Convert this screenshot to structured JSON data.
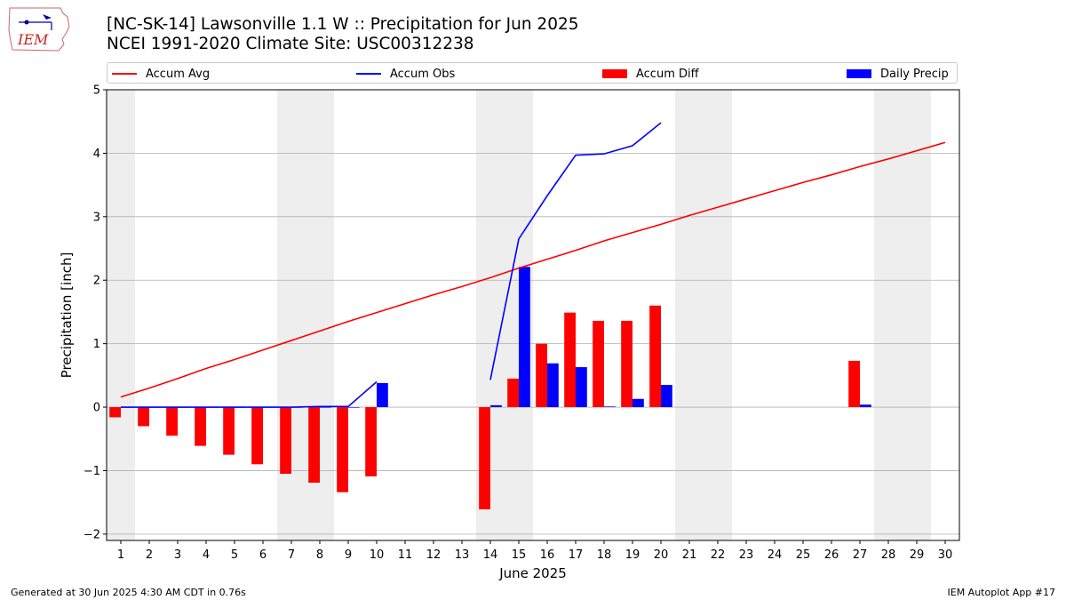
{
  "logo": {
    "text": "IEM"
  },
  "title": {
    "line1": "[NC-SK-14] Lawsonville 1.1 W :: Precipitation for Jun 2025",
    "line2": "NCEI 1991-2020 Climate Site: USC00312238"
  },
  "legend": [
    {
      "label": "Accum Avg",
      "kind": "line",
      "color": "#ff0000"
    },
    {
      "label": "Accum Obs",
      "kind": "line",
      "color": "#0000ff"
    },
    {
      "label": "Accum Diff",
      "kind": "bar",
      "color": "#ff0000"
    },
    {
      "label": "Daily Precip",
      "kind": "bar",
      "color": "#0000ff"
    }
  ],
  "footer": {
    "left": "Generated at 30 Jun 2025 4:30 AM CDT in 0.76s",
    "right": "IEM Autoplot App #17"
  },
  "chart_data": {
    "type": "bar",
    "xlabel": "June 2025",
    "ylabel": "Precipitation [inch]",
    "xlim": [
      0.5,
      30.5
    ],
    "ylim": [
      -2.1,
      5.0
    ],
    "yticks": [
      -2,
      -1,
      0,
      1,
      2,
      3,
      4,
      5
    ],
    "xticks": [
      1,
      2,
      3,
      4,
      5,
      6,
      7,
      8,
      9,
      10,
      11,
      12,
      13,
      14,
      15,
      16,
      17,
      18,
      19,
      20,
      21,
      22,
      23,
      24,
      25,
      26,
      27,
      28,
      29,
      30
    ],
    "grid": "y",
    "legend_position": "top",
    "weekend_shading": [
      [
        0.5,
        1.5
      ],
      [
        6.5,
        8.5
      ],
      [
        13.5,
        15.5
      ],
      [
        20.5,
        22.5
      ],
      [
        27.5,
        29.5
      ]
    ],
    "weekend_color": "#eeeeee",
    "series": [
      {
        "name": "Accum Avg",
        "kind": "line",
        "color": "#ff0000",
        "points": [
          [
            1,
            0.16
          ],
          [
            2,
            0.3
          ],
          [
            3,
            0.45
          ],
          [
            4,
            0.61
          ],
          [
            5,
            0.75
          ],
          [
            6,
            0.9
          ],
          [
            7,
            1.05
          ],
          [
            8,
            1.2
          ],
          [
            9,
            1.35
          ],
          [
            10,
            1.49
          ],
          [
            11,
            1.63
          ],
          [
            12,
            1.77
          ],
          [
            13,
            1.9
          ],
          [
            14,
            2.04
          ],
          [
            15,
            2.19
          ],
          [
            16,
            2.33
          ],
          [
            17,
            2.47
          ],
          [
            18,
            2.62
          ],
          [
            19,
            2.75
          ],
          [
            20,
            2.88
          ],
          [
            21,
            3.02
          ],
          [
            22,
            3.15
          ],
          [
            23,
            3.28
          ],
          [
            24,
            3.41
          ],
          [
            25,
            3.54
          ],
          [
            26,
            3.66
          ],
          [
            27,
            3.79
          ],
          [
            28,
            3.91
          ],
          [
            29,
            4.04
          ],
          [
            30,
            4.17
          ]
        ]
      },
      {
        "name": "Accum Obs",
        "kind": "line",
        "color": "#0000ff",
        "segments": [
          [
            [
              1,
              0.0
            ],
            [
              2,
              0.0
            ],
            [
              3,
              0.0
            ],
            [
              4,
              0.0
            ],
            [
              5,
              0.0
            ],
            [
              6,
              0.0
            ],
            [
              7,
              0.0
            ],
            [
              8,
              0.01
            ],
            [
              9,
              0.01
            ],
            [
              10,
              0.4
            ]
          ],
          [
            [
              14,
              0.43
            ],
            [
              15,
              2.65
            ],
            [
              16,
              3.33
            ],
            [
              17,
              3.97
            ],
            [
              18,
              3.99
            ],
            [
              19,
              4.12
            ],
            [
              20,
              4.48
            ]
          ]
        ]
      },
      {
        "name": "Accum Diff",
        "kind": "bar",
        "color": "#ff0000",
        "offset": -0.2,
        "points": [
          [
            1,
            -0.16
          ],
          [
            2,
            -0.3
          ],
          [
            3,
            -0.45
          ],
          [
            4,
            -0.61
          ],
          [
            5,
            -0.75
          ],
          [
            6,
            -0.9
          ],
          [
            7,
            -1.05
          ],
          [
            8,
            -1.19
          ],
          [
            9,
            -1.34
          ],
          [
            10,
            -1.09
          ],
          [
            14,
            -1.61
          ],
          [
            15,
            0.45
          ],
          [
            16,
            1.0
          ],
          [
            17,
            1.49
          ],
          [
            18,
            1.36
          ],
          [
            19,
            1.36
          ],
          [
            20,
            1.6
          ],
          [
            27,
            0.73
          ]
        ]
      },
      {
        "name": "Daily Precip",
        "kind": "bar",
        "color": "#0000ff",
        "offset": 0.2,
        "points": [
          [
            1,
            0.0
          ],
          [
            2,
            0.0
          ],
          [
            3,
            0.0
          ],
          [
            4,
            0.0
          ],
          [
            5,
            0.0
          ],
          [
            6,
            0.0
          ],
          [
            7,
            0.0
          ],
          [
            8,
            0.0
          ],
          [
            9,
            0.0
          ],
          [
            10,
            0.38
          ],
          [
            14,
            0.03
          ],
          [
            15,
            2.21
          ],
          [
            16,
            0.69
          ],
          [
            17,
            0.63
          ],
          [
            18,
            0.01
          ],
          [
            19,
            0.13
          ],
          [
            20,
            0.35
          ],
          [
            27,
            0.04
          ]
        ]
      }
    ]
  }
}
